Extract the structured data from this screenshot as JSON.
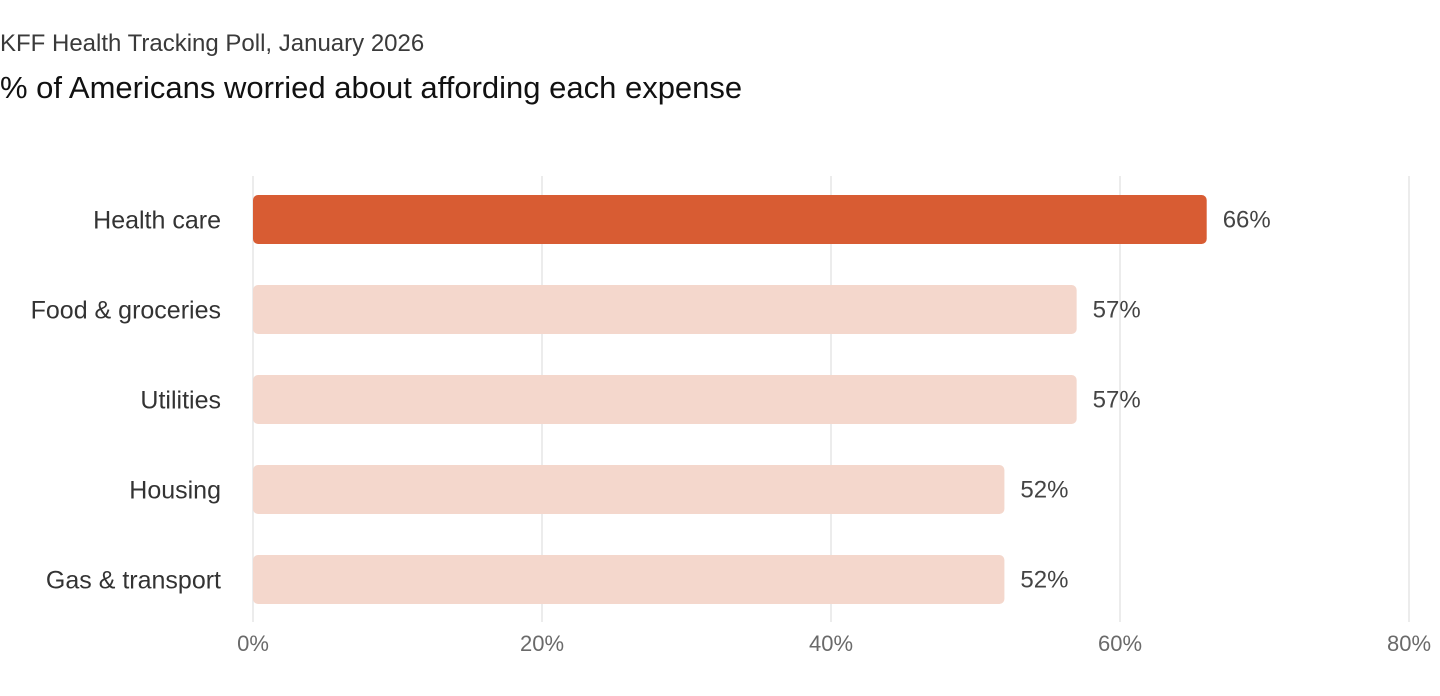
{
  "header": {
    "source": "KFF Health Tracking Poll, January 2026",
    "title": "% of Americans worried about affording each expense"
  },
  "colors": {
    "highlight": "#d85c33",
    "muted": "#f4d7cc",
    "grid": "#e6e6e6"
  },
  "chart_data": {
    "type": "bar",
    "orientation": "horizontal",
    "title": "% of Americans worried about affording each expense",
    "subtitle": "KFF Health Tracking Poll, January 2026",
    "categories": [
      "Health care",
      "Food & groceries",
      "Utilities",
      "Housing",
      "Gas & transport"
    ],
    "values": [
      66,
      57,
      57,
      52,
      52
    ],
    "value_labels": [
      "66%",
      "57%",
      "57%",
      "52%",
      "52%"
    ],
    "highlighted": [
      true,
      false,
      false,
      false,
      false
    ],
    "xlim": [
      0,
      80
    ],
    "xticks": [
      0,
      20,
      40,
      60,
      80
    ],
    "xtick_labels": [
      "0%",
      "20%",
      "40%",
      "60%",
      "80%"
    ],
    "xlabel": "",
    "ylabel": "",
    "grid": true
  }
}
